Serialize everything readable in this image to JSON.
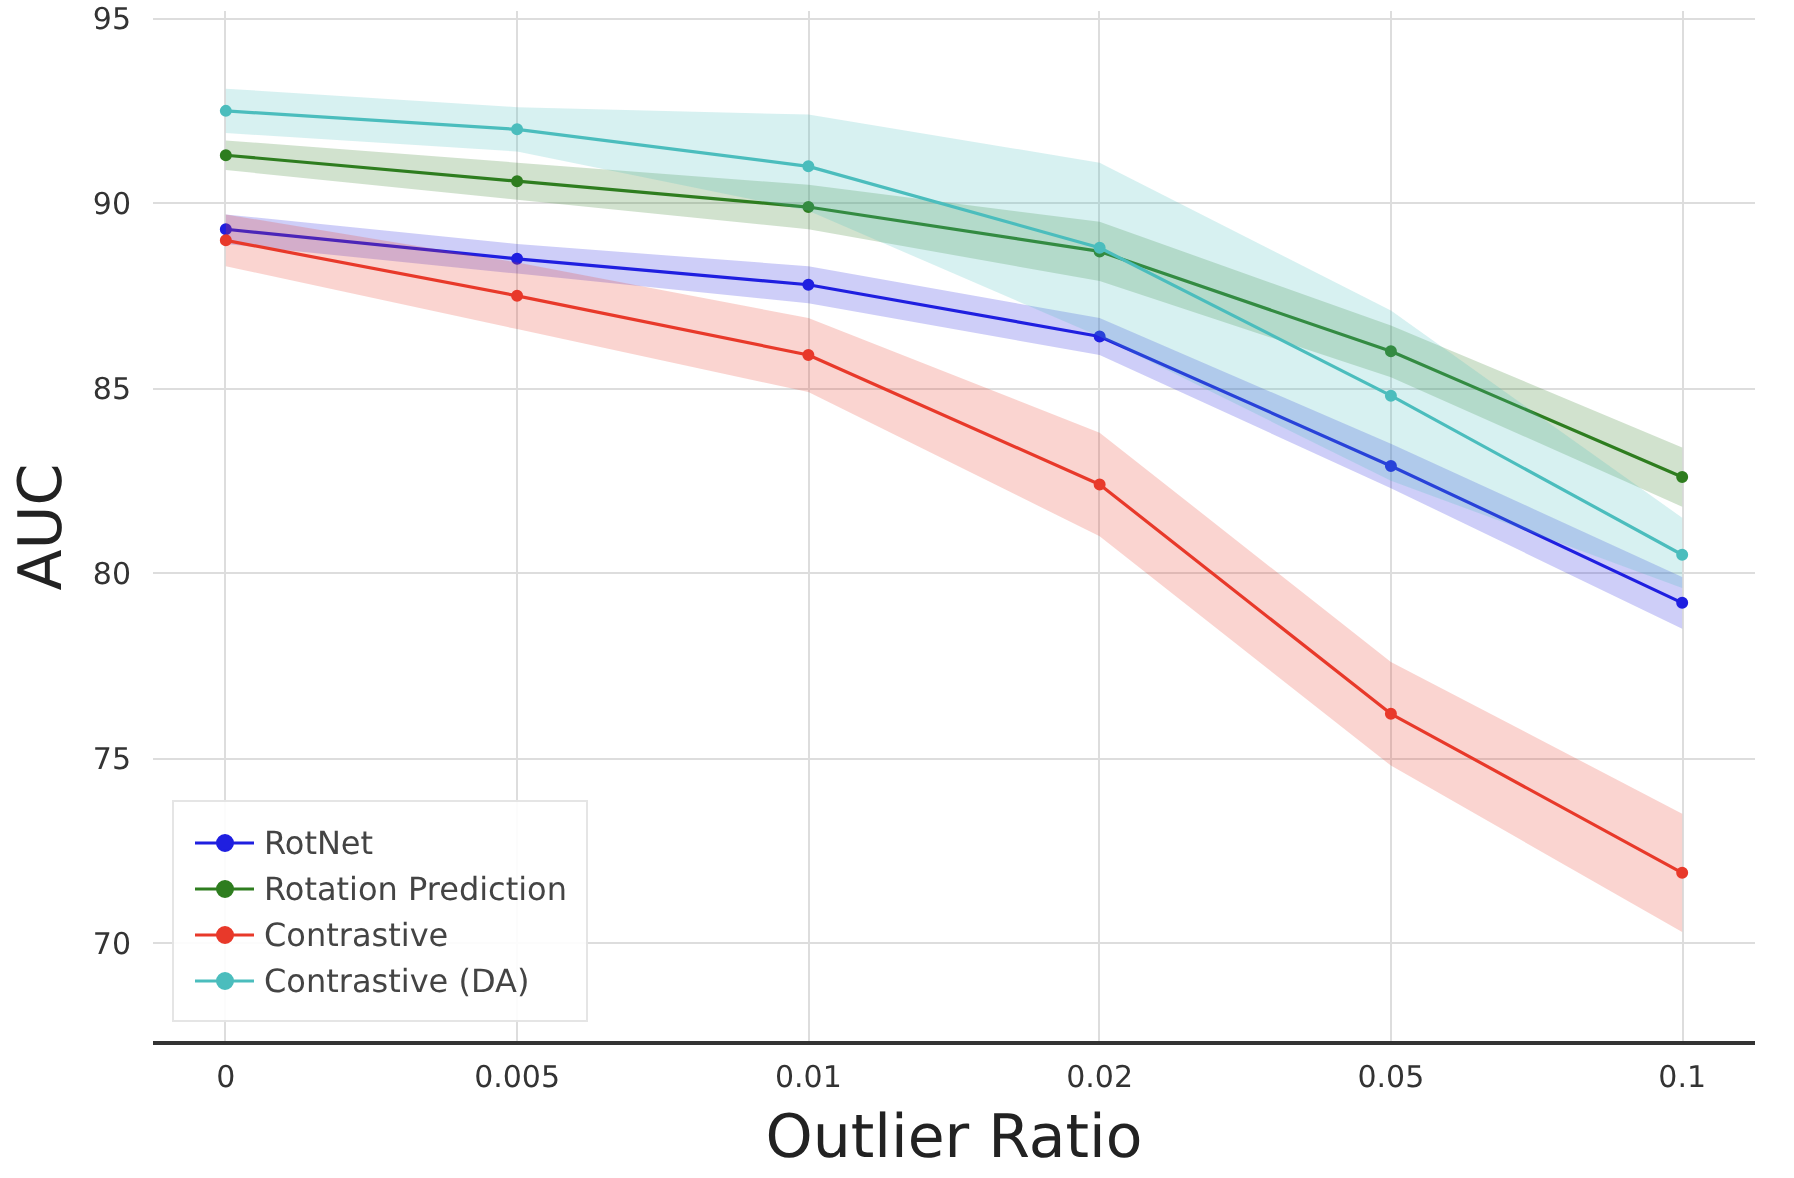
{
  "chart_data": {
    "type": "line",
    "xlabel": "Outlier Ratio",
    "ylabel": "AUC",
    "categories": [
      "0",
      "0.005",
      "0.01",
      "0.02",
      "0.05",
      "0.1"
    ],
    "ylim": [
      67.3,
      95.2
    ],
    "yticks": [
      70,
      75,
      80,
      85,
      90,
      95
    ],
    "grid": true,
    "legend": "bottom left",
    "marker": "circle",
    "line_style": "solid",
    "series": [
      {
        "name": "RotNet",
        "color": "#1f1fe0",
        "values": [
          89.3,
          88.5,
          87.8,
          86.4,
          82.9,
          79.2
        ],
        "lower": [
          88.9,
          88.1,
          87.3,
          85.9,
          82.3,
          78.5
        ],
        "upper": [
          89.7,
          88.9,
          88.3,
          86.9,
          83.5,
          79.9
        ]
      },
      {
        "name": "Rotation Prediction",
        "color": "#2e7d1f",
        "values": [
          91.3,
          90.6,
          89.9,
          88.7,
          86.0,
          82.6
        ],
        "lower": [
          90.9,
          90.1,
          89.3,
          87.9,
          85.3,
          81.8
        ],
        "upper": [
          91.7,
          91.1,
          90.5,
          89.5,
          86.7,
          83.4
        ]
      },
      {
        "name": "Contrastive",
        "color": "#e8392a",
        "values": [
          89.0,
          87.5,
          85.9,
          82.4,
          76.2,
          71.9
        ],
        "lower": [
          88.3,
          86.6,
          84.9,
          81.0,
          74.8,
          70.3
        ],
        "upper": [
          89.7,
          88.4,
          86.9,
          83.8,
          77.6,
          73.5
        ]
      },
      {
        "name": "Contrastive (DA)",
        "color": "#4bbdbd",
        "values": [
          92.5,
          92.0,
          91.0,
          88.8,
          84.8,
          80.5
        ],
        "lower": [
          91.9,
          91.4,
          89.8,
          86.4,
          82.5,
          79.6
        ],
        "upper": [
          93.1,
          92.6,
          92.4,
          91.1,
          87.1,
          81.5
        ]
      }
    ]
  }
}
